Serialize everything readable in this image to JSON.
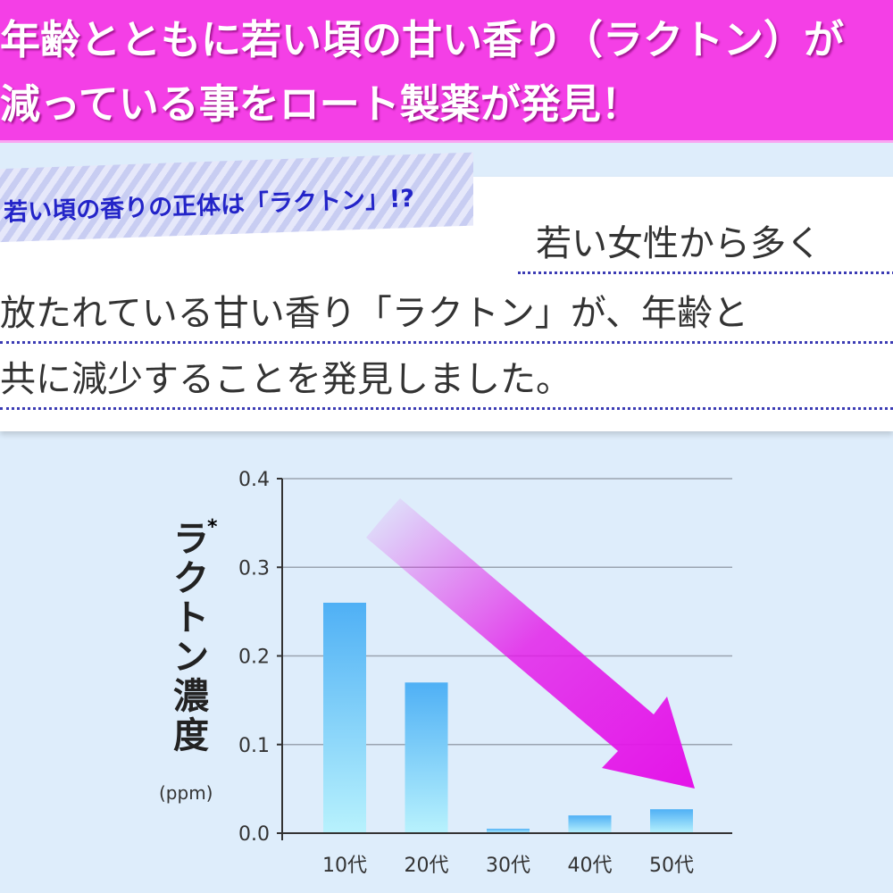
{
  "header": {
    "line1": "年齢とともに若い頃の甘い香り（ラクトン）が",
    "line2": "減っている事をロート製薬が発見！",
    "color": "#f43fe6"
  },
  "tag": {
    "text": "若い頃の香りの正体は「ラクトン」!?"
  },
  "body": {
    "line1": "若い女性から多く",
    "line2": "放たれている甘い香り「ラクトン」が、年齢と",
    "line3": "共に減少することを発見しました。"
  },
  "chart_data": {
    "type": "bar",
    "categories": [
      "10代",
      "20代",
      "30代",
      "40代",
      "50代"
    ],
    "values": [
      0.26,
      0.17,
      0.005,
      0.02,
      0.027
    ],
    "ylabel": "ラクトン濃度",
    "ylabel_mark": "*",
    "yunit": "(ppm)",
    "ylim": [
      0,
      0.4
    ],
    "yticks": [
      "0.0",
      "0.1",
      "0.2",
      "0.3",
      "0.4"
    ],
    "grid": true,
    "bar_color_top": "#4fb0f5",
    "bar_color_bottom": "#b8f2fd",
    "trend_arrow_color": "#e414e8"
  }
}
